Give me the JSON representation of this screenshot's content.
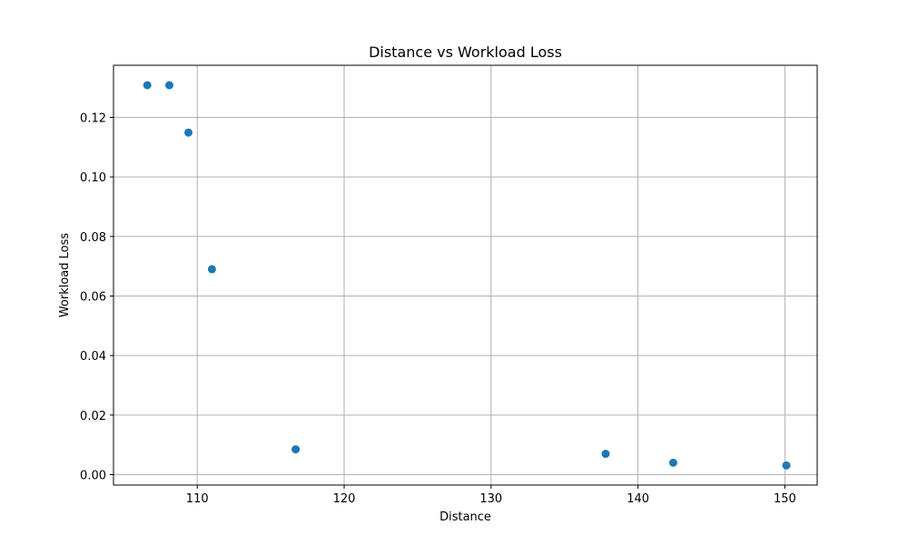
{
  "chart_data": {
    "type": "scatter",
    "title": "Distance vs Workload Loss",
    "xlabel": "Distance",
    "ylabel": "Workload Loss",
    "xlim": [
      104.3,
      152.2
    ],
    "ylim": [
      -0.0035,
      0.1375
    ],
    "xticks": [
      110,
      120,
      130,
      140,
      150
    ],
    "yticks": [
      0.0,
      0.02,
      0.04,
      0.06,
      0.08,
      0.1,
      0.12
    ],
    "xtick_labels": [
      "110",
      "120",
      "130",
      "140",
      "150"
    ],
    "ytick_labels": [
      "0.00",
      "0.02",
      "0.04",
      "0.06",
      "0.08",
      "0.10",
      "0.12"
    ],
    "grid": true,
    "point_color": "#1f77b4",
    "points": [
      {
        "x": 106.6,
        "y": 0.1308
      },
      {
        "x": 108.1,
        "y": 0.1308
      },
      {
        "x": 109.4,
        "y": 0.1149
      },
      {
        "x": 111.0,
        "y": 0.069
      },
      {
        "x": 116.7,
        "y": 0.0085
      },
      {
        "x": 137.8,
        "y": 0.007
      },
      {
        "x": 142.4,
        "y": 0.004
      },
      {
        "x": 150.1,
        "y": 0.0031
      }
    ]
  }
}
